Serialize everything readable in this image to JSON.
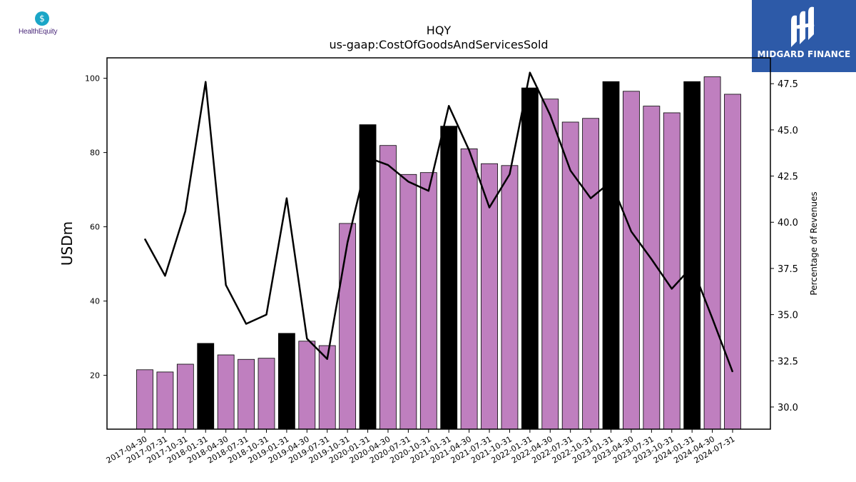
{
  "header": {
    "left_logo_text": "HealthEquity",
    "right_logo_text": "MIDGARD FINANCE"
  },
  "chart_data": {
    "type": "bar",
    "title": "HQY",
    "subtitle": "us-gaap:CostOfGoodsAndServicesSold",
    "ylabel": "USDm",
    "y2label": "Percentage of Revenues",
    "ylim": [
      5.5,
      105.5
    ],
    "y2lim": [
      28.8,
      48.9
    ],
    "yticks": [
      20,
      40,
      60,
      80,
      100
    ],
    "y2ticks": [
      "30.0",
      "32.5",
      "35.0",
      "37.5",
      "40.0",
      "42.5",
      "45.0",
      "47.5"
    ],
    "categories": [
      "2017-04-30",
      "2017-07-31",
      "2017-10-31",
      "2018-01-31",
      "2018-04-30",
      "2018-07-31",
      "2018-10-31",
      "2019-01-31",
      "2019-04-30",
      "2019-07-31",
      "2019-10-31",
      "2020-01-31",
      "2020-04-30",
      "2020-07-31",
      "2020-10-31",
      "2021-01-31",
      "2021-04-30",
      "2021-07-31",
      "2021-10-31",
      "2022-01-31",
      "2022-04-30",
      "2022-07-31",
      "2022-10-31",
      "2023-01-31",
      "2023-04-30",
      "2023-07-31",
      "2023-10-31",
      "2024-01-31",
      "2024-04-30",
      "2024-07-31"
    ],
    "series": [
      {
        "type": "bar",
        "values": [
          21.5,
          20.9,
          23.0,
          28.6,
          25.5,
          24.3,
          24.6,
          31.3,
          29.2,
          28.0,
          60.9,
          87.5,
          81.9,
          74.1,
          74.6,
          87.1,
          81.0,
          77.0,
          76.5,
          97.4,
          94.4,
          88.2,
          89.2,
          99.1,
          96.5,
          92.5,
          90.7,
          99.1,
          100.4,
          95.7
        ],
        "highlighted_categories": [
          "2018-01-31",
          "2019-01-31",
          "2020-01-31",
          "2021-01-31",
          "2022-01-31",
          "2023-01-31",
          "2024-01-31"
        ]
      },
      {
        "type": "line",
        "axis": "right",
        "values": [
          39.1,
          37.1,
          40.6,
          47.6,
          36.6,
          34.5,
          35.0,
          41.3,
          33.7,
          32.6,
          38.9,
          43.5,
          43.1,
          42.2,
          41.7,
          46.3,
          43.9,
          40.8,
          42.6,
          48.1,
          45.8,
          42.8,
          41.3,
          42.2,
          39.5,
          38.0,
          36.4,
          37.6,
          34.8,
          31.9
        ]
      }
    ],
    "colors": {
      "bar": "#bf7fbf",
      "bar_highlight": "#000000",
      "line": "#000000"
    },
    "grid": false,
    "legend": "none"
  }
}
